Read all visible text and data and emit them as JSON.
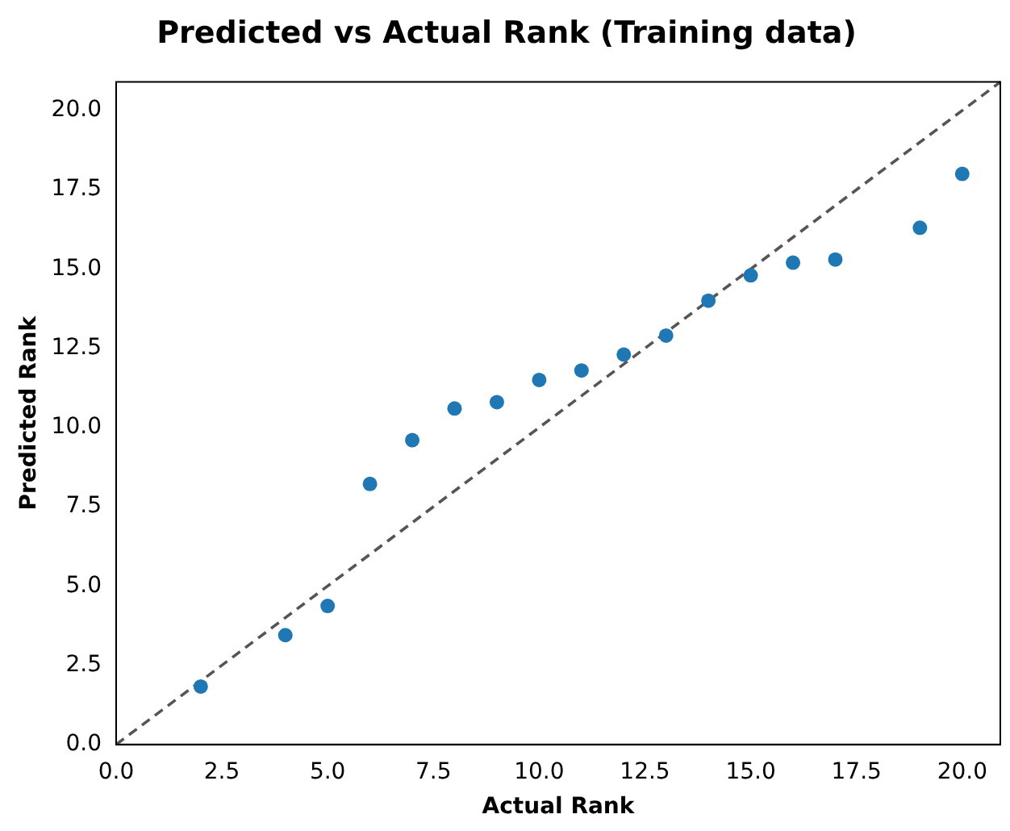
{
  "chart_data": {
    "type": "scatter",
    "title": "Predicted vs Actual Rank (Training data)",
    "xlabel": "Actual Rank",
    "ylabel": "Predicted Rank",
    "xlim": [
      0,
      20.9
    ],
    "ylim": [
      0,
      20.9
    ],
    "xticks": [
      {
        "value": 0,
        "label": "0.0"
      },
      {
        "value": 2.5,
        "label": "2.5"
      },
      {
        "value": 5,
        "label": "5.0"
      },
      {
        "value": 7.5,
        "label": "7.5"
      },
      {
        "value": 10,
        "label": "10.0"
      },
      {
        "value": 12.5,
        "label": "12.5"
      },
      {
        "value": 15,
        "label": "15.0"
      },
      {
        "value": 17.5,
        "label": "17.5"
      },
      {
        "value": 20,
        "label": "20.0"
      }
    ],
    "yticks": [
      {
        "value": 0,
        "label": "0.0"
      },
      {
        "value": 2.5,
        "label": "2.5"
      },
      {
        "value": 5,
        "label": "5.0"
      },
      {
        "value": 7.5,
        "label": "7.5"
      },
      {
        "value": 10,
        "label": "10.0"
      },
      {
        "value": 12.5,
        "label": "12.5"
      },
      {
        "value": 15,
        "label": "15.0"
      },
      {
        "value": 17.5,
        "label": "17.5"
      },
      {
        "value": 20,
        "label": "20.0"
      }
    ],
    "grid": false,
    "legend": false,
    "series": [
      {
        "color": "#1f77b4",
        "marker": "circle",
        "x": [
          2,
          4,
          5,
          6,
          7,
          8,
          9,
          10,
          11,
          12,
          13,
          14,
          15,
          16,
          17,
          19,
          20
        ],
        "values": [
          1.83,
          3.45,
          4.37,
          8.22,
          9.6,
          10.6,
          10.8,
          11.5,
          11.8,
          12.3,
          12.9,
          14.0,
          14.8,
          15.2,
          15.3,
          16.3,
          18.0
        ]
      },
      {
        "type": "line",
        "color": "#555555",
        "line_style": "dashed",
        "marker": "none",
        "x": [
          0,
          20.9
        ],
        "values": [
          0,
          20.9
        ]
      }
    ]
  }
}
